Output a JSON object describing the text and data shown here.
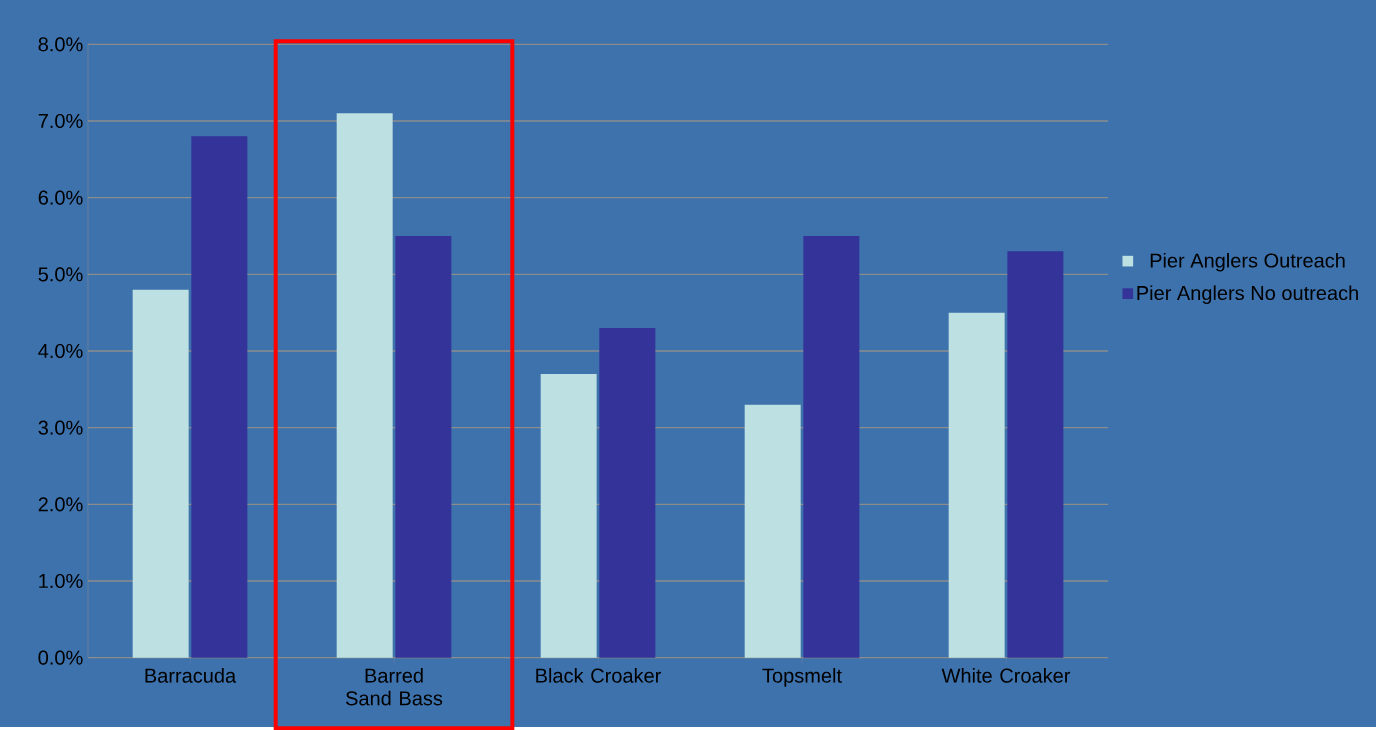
{
  "chart_data": {
    "type": "bar",
    "categories": [
      "Barracuda",
      "Barred Sand Bass",
      "Black Croaker",
      "Topsmelt",
      "White Croaker"
    ],
    "series": [
      {
        "name": "Pier Anglers Outreach",
        "color": "#bde0e2",
        "values": [
          4.8,
          7.1,
          3.7,
          3.3,
          4.5
        ]
      },
      {
        "name": "Pier Anglers No outreach",
        "color": "#333399",
        "values": [
          6.8,
          5.5,
          4.3,
          5.5,
          5.3
        ]
      }
    ],
    "ylim": [
      0,
      8
    ],
    "yticks": [
      {
        "value": 0,
        "label": "0.0%"
      },
      {
        "value": 1,
        "label": "1.0%"
      },
      {
        "value": 2,
        "label": "2.0%"
      },
      {
        "value": 3,
        "label": "3.0%"
      },
      {
        "value": 4,
        "label": "4.0%"
      },
      {
        "value": 5,
        "label": "5.0%"
      },
      {
        "value": 6,
        "label": "6.0%"
      },
      {
        "value": 7,
        "label": "7.0%"
      },
      {
        "value": 8,
        "label": "8.0%"
      }
    ],
    "grid": "y",
    "legend": "right"
  }
}
